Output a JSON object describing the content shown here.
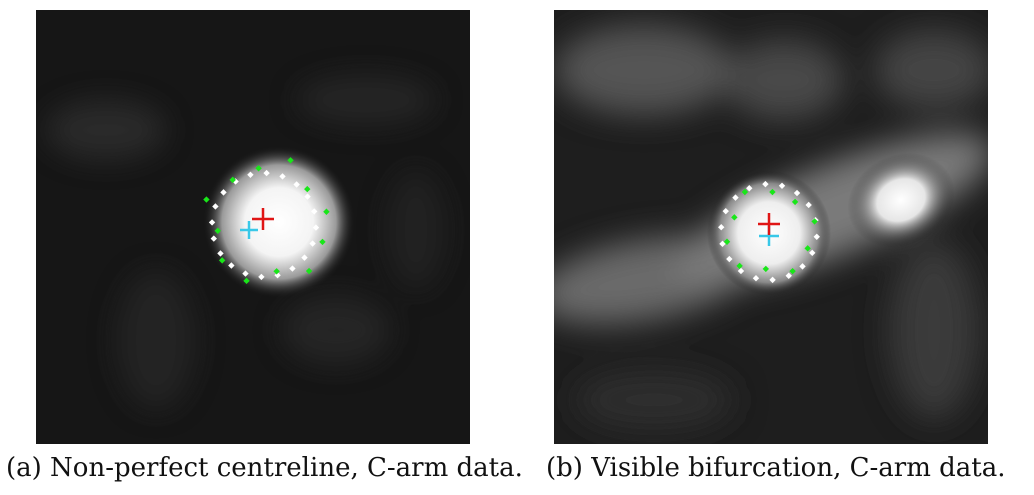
{
  "figure": {
    "panels": [
      {
        "caption": "(a) Non-perfect centreline, C-arm data.",
        "background_color": "#1a1a1a",
        "marker_colors": {
          "contour_white": "#ffffff",
          "contour_green": "#19e619",
          "centre_red": "#e01515",
          "centre_cyan": "#39c8e8"
        }
      },
      {
        "caption": "(b) Visible bifurcation, C-arm data.",
        "background_color": "#222222",
        "marker_colors": {
          "contour_white": "#ffffff",
          "contour_green": "#19e619",
          "centre_red": "#e01515",
          "centre_cyan": "#39c8e8"
        }
      }
    ]
  }
}
